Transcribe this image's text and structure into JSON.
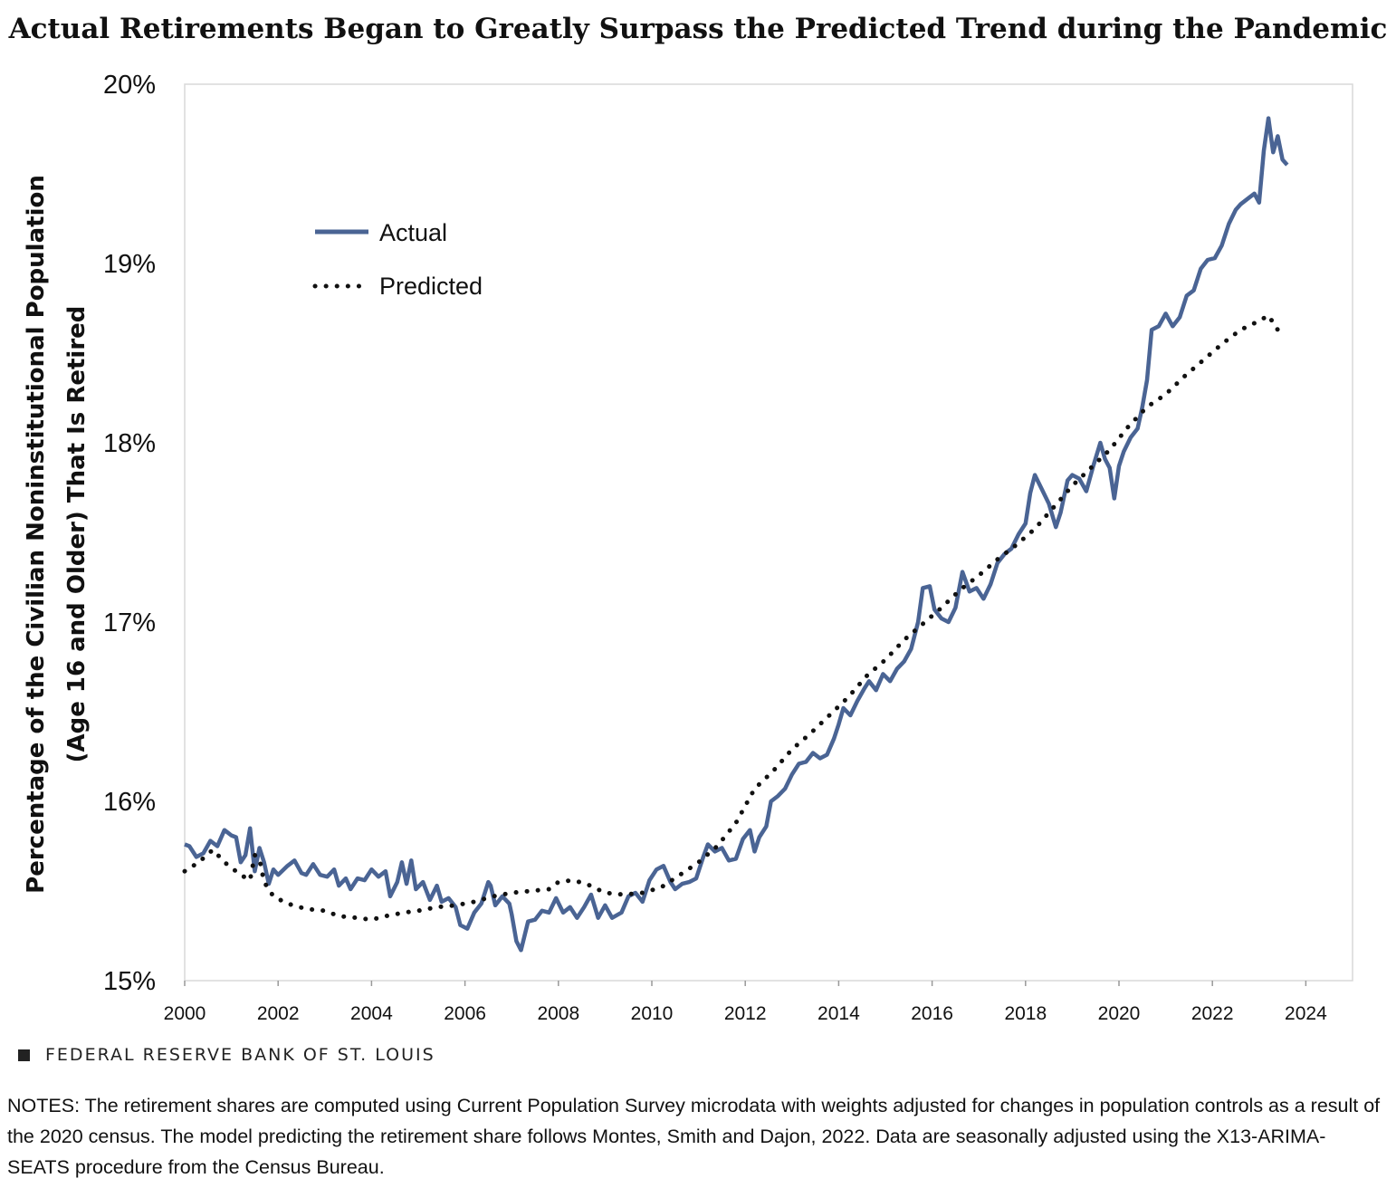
{
  "title": "Actual Retirements Began to Greatly Surpass the Predicted Trend during the Pandemic",
  "branding": "FEDERAL RESERVE BANK OF ST. LOUIS",
  "notes": "NOTES: The retirement shares are computed using Current Population Survey microdata with weights adjusted for changes in population controls as a result of the 2020 census. The model predicting the retirement share follows Montes, Smith and Dajon, 2022. Data are seasonally adjusted using the X13-ARIMA-SEATS procedure from the Census Bureau.",
  "colors": {
    "actual": "#4a6494",
    "predicted": "#111111",
    "grid": "#d9d9d9"
  },
  "chart_data": {
    "type": "line",
    "ylabel_line1": "Percentage of the Civilian Noninstitutional  Population",
    "ylabel_line2": "(Age 16 and Older) That Is Retired",
    "xlim": [
      2000,
      2025
    ],
    "ylim": [
      15,
      20
    ],
    "x_ticks": [
      "2000",
      "2002",
      "2004",
      "2006",
      "2008",
      "2010",
      "2012",
      "2014",
      "2016",
      "2018",
      "2020",
      "2022",
      "2024"
    ],
    "x_tick_values": [
      2000,
      2002,
      2004,
      2006,
      2008,
      2010,
      2012,
      2014,
      2016,
      2018,
      2020,
      2022,
      2024
    ],
    "y_ticks": [
      "15%",
      "16%",
      "17%",
      "18%",
      "19%",
      "20%"
    ],
    "y_tick_values": [
      15,
      16,
      17,
      18,
      19,
      20
    ],
    "legend_position": "upper-left",
    "series": [
      {
        "name": "Actual",
        "style": "solid",
        "points": [
          [
            2000.0,
            15.76
          ],
          [
            2000.1,
            15.75
          ],
          [
            2000.25,
            15.69
          ],
          [
            2000.4,
            15.71
          ],
          [
            2000.55,
            15.78
          ],
          [
            2000.7,
            15.75
          ],
          [
            2000.85,
            15.84
          ],
          [
            2001.0,
            15.81
          ],
          [
            2001.1,
            15.8
          ],
          [
            2001.2,
            15.66
          ],
          [
            2001.3,
            15.7
          ],
          [
            2001.4,
            15.85
          ],
          [
            2001.5,
            15.61
          ],
          [
            2001.6,
            15.74
          ],
          [
            2001.7,
            15.66
          ],
          [
            2001.8,
            15.54
          ],
          [
            2001.9,
            15.62
          ],
          [
            2002.0,
            15.59
          ],
          [
            2002.2,
            15.64
          ],
          [
            2002.35,
            15.67
          ],
          [
            2002.5,
            15.6
          ],
          [
            2002.6,
            15.59
          ],
          [
            2002.75,
            15.65
          ],
          [
            2002.9,
            15.59
          ],
          [
            2003.05,
            15.58
          ],
          [
            2003.2,
            15.62
          ],
          [
            2003.3,
            15.53
          ],
          [
            2003.45,
            15.57
          ],
          [
            2003.55,
            15.51
          ],
          [
            2003.7,
            15.57
          ],
          [
            2003.85,
            15.56
          ],
          [
            2004.0,
            15.62
          ],
          [
            2004.15,
            15.58
          ],
          [
            2004.3,
            15.61
          ],
          [
            2004.4,
            15.47
          ],
          [
            2004.55,
            15.55
          ],
          [
            2004.65,
            15.66
          ],
          [
            2004.75,
            15.54
          ],
          [
            2004.85,
            15.67
          ],
          [
            2004.95,
            15.51
          ],
          [
            2005.1,
            15.55
          ],
          [
            2005.25,
            15.45
          ],
          [
            2005.4,
            15.53
          ],
          [
            2005.5,
            15.44
          ],
          [
            2005.65,
            15.46
          ],
          [
            2005.8,
            15.41
          ],
          [
            2005.9,
            15.31
          ],
          [
            2006.05,
            15.29
          ],
          [
            2006.2,
            15.38
          ],
          [
            2006.35,
            15.43
          ],
          [
            2006.5,
            15.55
          ],
          [
            2006.55,
            15.53
          ],
          [
            2006.65,
            15.42
          ],
          [
            2006.8,
            15.47
          ],
          [
            2006.95,
            15.43
          ],
          [
            2007.0,
            15.37
          ],
          [
            2007.1,
            15.22
          ],
          [
            2007.2,
            15.17
          ],
          [
            2007.35,
            15.33
          ],
          [
            2007.5,
            15.34
          ],
          [
            2007.65,
            15.39
          ],
          [
            2007.8,
            15.38
          ],
          [
            2007.95,
            15.46
          ],
          [
            2008.1,
            15.38
          ],
          [
            2008.25,
            15.41
          ],
          [
            2008.4,
            15.35
          ],
          [
            2008.55,
            15.41
          ],
          [
            2008.7,
            15.48
          ],
          [
            2008.85,
            15.35
          ],
          [
            2009.0,
            15.42
          ],
          [
            2009.15,
            15.35
          ],
          [
            2009.35,
            15.38
          ],
          [
            2009.5,
            15.47
          ],
          [
            2009.65,
            15.49
          ],
          [
            2009.8,
            15.44
          ],
          [
            2009.95,
            15.56
          ],
          [
            2010.1,
            15.62
          ],
          [
            2010.25,
            15.64
          ],
          [
            2010.4,
            15.55
          ],
          [
            2010.5,
            15.51
          ],
          [
            2010.65,
            15.54
          ],
          [
            2010.8,
            15.55
          ],
          [
            2010.95,
            15.57
          ],
          [
            2011.1,
            15.69
          ],
          [
            2011.2,
            15.76
          ],
          [
            2011.35,
            15.72
          ],
          [
            2011.5,
            15.74
          ],
          [
            2011.65,
            15.67
          ],
          [
            2011.8,
            15.68
          ],
          [
            2011.95,
            15.79
          ],
          [
            2012.1,
            15.84
          ],
          [
            2012.2,
            15.72
          ],
          [
            2012.3,
            15.8
          ],
          [
            2012.45,
            15.86
          ],
          [
            2012.55,
            16.0
          ],
          [
            2012.7,
            16.03
          ],
          [
            2012.85,
            16.07
          ],
          [
            2013.0,
            16.15
          ],
          [
            2013.15,
            16.21
          ],
          [
            2013.3,
            16.22
          ],
          [
            2013.45,
            16.27
          ],
          [
            2013.6,
            16.24
          ],
          [
            2013.75,
            16.26
          ],
          [
            2013.9,
            16.35
          ],
          [
            2014.0,
            16.43
          ],
          [
            2014.1,
            16.52
          ],
          [
            2014.25,
            16.48
          ],
          [
            2014.4,
            16.56
          ],
          [
            2014.55,
            16.63
          ],
          [
            2014.65,
            16.67
          ],
          [
            2014.8,
            16.62
          ],
          [
            2014.95,
            16.71
          ],
          [
            2015.1,
            16.67
          ],
          [
            2015.25,
            16.74
          ],
          [
            2015.4,
            16.78
          ],
          [
            2015.55,
            16.85
          ],
          [
            2015.7,
            17.0
          ],
          [
            2015.8,
            17.19
          ],
          [
            2015.95,
            17.2
          ],
          [
            2016.05,
            17.07
          ],
          [
            2016.2,
            17.02
          ],
          [
            2016.35,
            17.0
          ],
          [
            2016.5,
            17.08
          ],
          [
            2016.65,
            17.28
          ],
          [
            2016.8,
            17.17
          ],
          [
            2016.95,
            17.19
          ],
          [
            2017.1,
            17.13
          ],
          [
            2017.25,
            17.21
          ],
          [
            2017.4,
            17.33
          ],
          [
            2017.55,
            17.38
          ],
          [
            2017.7,
            17.41
          ],
          [
            2017.85,
            17.49
          ],
          [
            2018.0,
            17.55
          ],
          [
            2018.1,
            17.72
          ],
          [
            2018.2,
            17.82
          ],
          [
            2018.35,
            17.74
          ],
          [
            2018.5,
            17.66
          ],
          [
            2018.65,
            17.53
          ],
          [
            2018.75,
            17.61
          ],
          [
            2018.9,
            17.79
          ],
          [
            2019.0,
            17.82
          ],
          [
            2019.15,
            17.8
          ],
          [
            2019.3,
            17.73
          ],
          [
            2019.45,
            17.87
          ],
          [
            2019.6,
            18.0
          ],
          [
            2019.7,
            17.91
          ],
          [
            2019.8,
            17.86
          ],
          [
            2019.9,
            17.69
          ],
          [
            2020.0,
            17.87
          ],
          [
            2020.1,
            17.95
          ],
          [
            2020.25,
            18.03
          ],
          [
            2020.4,
            18.08
          ],
          [
            2020.5,
            18.2
          ],
          [
            2020.6,
            18.35
          ],
          [
            2020.7,
            18.63
          ],
          [
            2020.85,
            18.65
          ],
          [
            2021.0,
            18.72
          ],
          [
            2021.15,
            18.65
          ],
          [
            2021.3,
            18.7
          ],
          [
            2021.45,
            18.82
          ],
          [
            2021.6,
            18.85
          ],
          [
            2021.75,
            18.97
          ],
          [
            2021.9,
            19.02
          ],
          [
            2022.05,
            19.03
          ],
          [
            2022.2,
            19.1
          ],
          [
            2022.35,
            19.22
          ],
          [
            2022.5,
            19.3
          ],
          [
            2022.6,
            19.33
          ],
          [
            2022.75,
            19.36
          ],
          [
            2022.9,
            19.39
          ],
          [
            2023.0,
            19.34
          ],
          [
            2023.1,
            19.63
          ],
          [
            2023.2,
            19.81
          ],
          [
            2023.3,
            19.62
          ],
          [
            2023.4,
            19.71
          ],
          [
            2023.5,
            19.58
          ],
          [
            2023.6,
            19.55
          ]
        ]
      },
      {
        "name": "Predicted",
        "style": "dotted",
        "points": [
          [
            2000.0,
            15.61
          ],
          [
            2000.3,
            15.66
          ],
          [
            2000.6,
            15.73
          ],
          [
            2000.9,
            15.65
          ],
          [
            2001.2,
            15.59
          ],
          [
            2001.4,
            15.56
          ],
          [
            2001.5,
            15.7
          ],
          [
            2001.6,
            15.68
          ],
          [
            2001.7,
            15.55
          ],
          [
            2001.9,
            15.47
          ],
          [
            2002.2,
            15.43
          ],
          [
            2002.6,
            15.4
          ],
          [
            2003.0,
            15.39
          ],
          [
            2003.3,
            15.36
          ],
          [
            2003.7,
            15.35
          ],
          [
            2004.0,
            15.34
          ],
          [
            2004.3,
            15.36
          ],
          [
            2004.7,
            15.38
          ],
          [
            2005.0,
            15.39
          ],
          [
            2005.4,
            15.41
          ],
          [
            2005.8,
            15.42
          ],
          [
            2006.2,
            15.44
          ],
          [
            2006.6,
            15.47
          ],
          [
            2007.0,
            15.49
          ],
          [
            2007.4,
            15.5
          ],
          [
            2007.8,
            15.51
          ],
          [
            2008.0,
            15.55
          ],
          [
            2008.3,
            15.56
          ],
          [
            2008.6,
            15.54
          ],
          [
            2009.0,
            15.49
          ],
          [
            2009.4,
            15.48
          ],
          [
            2009.8,
            15.49
          ],
          [
            2010.2,
            15.52
          ],
          [
            2010.6,
            15.59
          ],
          [
            2011.0,
            15.66
          ],
          [
            2011.4,
            15.75
          ],
          [
            2011.8,
            15.88
          ],
          [
            2012.2,
            16.07
          ],
          [
            2012.6,
            16.17
          ],
          [
            2013.0,
            16.29
          ],
          [
            2013.4,
            16.38
          ],
          [
            2013.8,
            16.48
          ],
          [
            2014.2,
            16.58
          ],
          [
            2014.6,
            16.7
          ],
          [
            2015.0,
            16.79
          ],
          [
            2015.4,
            16.9
          ],
          [
            2015.8,
            16.99
          ],
          [
            2016.2,
            17.08
          ],
          [
            2016.6,
            17.18
          ],
          [
            2017.0,
            17.26
          ],
          [
            2017.4,
            17.35
          ],
          [
            2017.8,
            17.43
          ],
          [
            2018.2,
            17.52
          ],
          [
            2018.6,
            17.64
          ],
          [
            2019.0,
            17.76
          ],
          [
            2019.4,
            17.86
          ],
          [
            2019.8,
            17.96
          ],
          [
            2020.2,
            18.09
          ],
          [
            2020.6,
            18.2
          ],
          [
            2021.0,
            18.27
          ],
          [
            2021.4,
            18.37
          ],
          [
            2021.8,
            18.46
          ],
          [
            2022.2,
            18.55
          ],
          [
            2022.6,
            18.63
          ],
          [
            2023.0,
            18.68
          ],
          [
            2023.2,
            18.71
          ],
          [
            2023.4,
            18.63
          ]
        ]
      }
    ]
  }
}
